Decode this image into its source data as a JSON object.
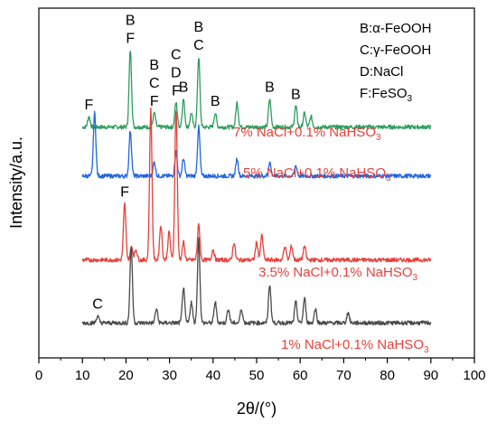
{
  "chart_data": {
    "type": "line",
    "title": "",
    "xlabel": "2θ/(°)",
    "ylabel": "Intensity/a.u.",
    "xlim": [
      0,
      100
    ],
    "x_ticks": [
      0,
      10,
      20,
      30,
      40,
      50,
      60,
      70,
      80,
      90,
      100
    ],
    "y_ticks_shown": false,
    "grid": false,
    "legend_position": "top-right",
    "legend": [
      {
        "symbol": "B",
        "phase": "α-FeOOH"
      },
      {
        "symbol": "C",
        "phase": "γ-FeOOH"
      },
      {
        "symbol": "D",
        "phase": "NaCl"
      },
      {
        "symbol": "F",
        "phase": "FeSO3"
      }
    ],
    "series": [
      {
        "name": "7% NaCl+0.1% NaHSO3",
        "color": "#2e9e5e",
        "baseline": 0.66,
        "x_range": [
          10,
          90
        ],
        "peaks": [
          [
            11.5,
            0.03
          ],
          [
            21.0,
            0.22
          ],
          [
            26.5,
            0.04
          ],
          [
            31.5,
            0.07
          ],
          [
            33.2,
            0.08
          ],
          [
            35.0,
            0.04
          ],
          [
            36.7,
            0.2
          ],
          [
            40.5,
            0.04
          ],
          [
            45.5,
            0.07
          ],
          [
            53.0,
            0.08
          ],
          [
            59.0,
            0.06
          ],
          [
            61.0,
            0.04
          ],
          [
            62.5,
            0.03
          ]
        ],
        "annotations": [
          {
            "x": 11.5,
            "text": "F"
          },
          {
            "x": 21.0,
            "text": "B F"
          },
          {
            "x": 26.5,
            "text": "B C F"
          },
          {
            "x": 31.5,
            "text": "C D F"
          },
          {
            "x": 33.2,
            "text": "B"
          },
          {
            "x": 36.7,
            "text": "B C"
          },
          {
            "x": 40.5,
            "text": "B"
          },
          {
            "x": 53.0,
            "text": "B"
          },
          {
            "x": 59.0,
            "text": "B"
          }
        ]
      },
      {
        "name": "5% NaCl+0.1% NaHSO3",
        "color": "#2166e0",
        "baseline": 0.52,
        "x_range": [
          10,
          90
        ],
        "peaks": [
          [
            12.8,
            0.18
          ],
          [
            21.0,
            0.13
          ],
          [
            26.5,
            0.04
          ],
          [
            31.5,
            0.07
          ],
          [
            33.2,
            0.05
          ],
          [
            36.7,
            0.14
          ],
          [
            45.5,
            0.05
          ],
          [
            53.0,
            0.04
          ],
          [
            59.0,
            0.03
          ]
        ],
        "annotations": []
      },
      {
        "name": "3.5% NaCl+0.1% NaHSO3",
        "color": "#e8403a",
        "baseline": 0.28,
        "x_range": [
          10,
          90
        ],
        "peaks": [
          [
            19.7,
            0.16
          ],
          [
            21.3,
            0.04
          ],
          [
            22.3,
            0.03
          ],
          [
            25.7,
            0.43
          ],
          [
            28.0,
            0.1
          ],
          [
            29.9,
            0.08
          ],
          [
            31.5,
            0.43
          ],
          [
            33.2,
            0.05
          ],
          [
            36.7,
            0.1
          ],
          [
            40.0,
            0.03
          ],
          [
            44.8,
            0.05
          ],
          [
            50.0,
            0.05
          ],
          [
            51.2,
            0.07
          ],
          [
            56.5,
            0.04
          ],
          [
            58.0,
            0.04
          ],
          [
            61.0,
            0.04
          ]
        ],
        "annotations": [
          {
            "x": 19.7,
            "text": "F"
          }
        ]
      },
      {
        "name": "1% NaCl+0.1% NaHSO3",
        "color": "#4a4a4a",
        "baseline": 0.1,
        "x_range": [
          10,
          90
        ],
        "peaks": [
          [
            13.5,
            0.02
          ],
          [
            21.2,
            0.22
          ],
          [
            27.0,
            0.04
          ],
          [
            33.2,
            0.1
          ],
          [
            35.0,
            0.06
          ],
          [
            36.7,
            0.24
          ],
          [
            40.5,
            0.06
          ],
          [
            43.5,
            0.04
          ],
          [
            46.5,
            0.04
          ],
          [
            53.0,
            0.11
          ],
          [
            59.0,
            0.06
          ],
          [
            61.0,
            0.07
          ],
          [
            63.5,
            0.04
          ],
          [
            71.0,
            0.03
          ]
        ],
        "annotations": [
          {
            "x": 13.5,
            "text": "C"
          }
        ]
      }
    ]
  },
  "text": {
    "xlabel": "2θ/(°)",
    "ylabel": "Intensity/a.u.",
    "legend": [
      "B:α-FeOOH",
      "C:γ-FeOOH",
      "D:NaCl",
      "F:FeSO"
    ],
    "legend_sub": "3",
    "series_labels": [
      "7% NaCl+0.1% NaHSO",
      "5% NaCl+0.1% NaHSO",
      "3.5% NaCl+0.1% NaHSO",
      "1% NaCl+0.1% NaHSO"
    ],
    "series_label_sub": "3"
  }
}
